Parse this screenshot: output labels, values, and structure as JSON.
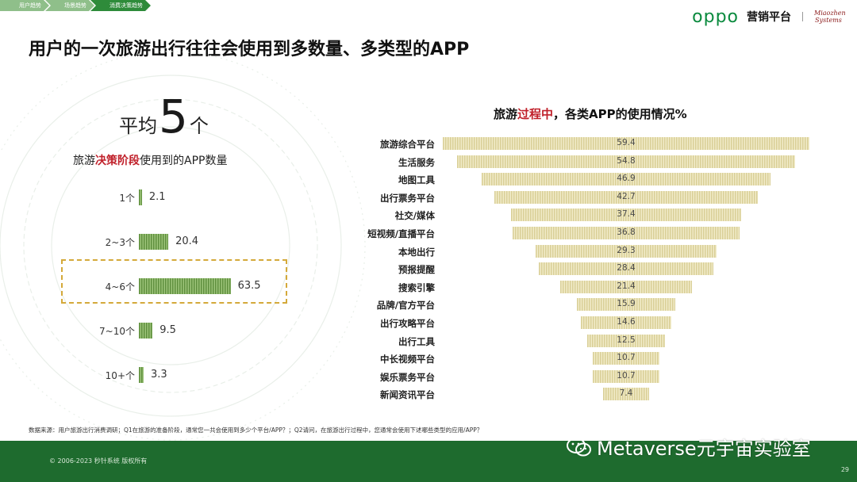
{
  "breadcrumbs": [
    "用户趋势",
    "场景趋势",
    "消费决策趋势"
  ],
  "brand": {
    "logo": "oppo",
    "sub": "营销平台",
    "partner_line1": "Miaozhen",
    "partner_line2": "Systems"
  },
  "title": "用户的一次旅游出行往往会使用到多数量、多类型的APP",
  "left": {
    "avg_prefix": "平均",
    "avg_number": "5",
    "avg_suffix": "个",
    "subtitle_pre": "旅游",
    "subtitle_hl": "决策阶段",
    "subtitle_post": "使用到的APP数量"
  },
  "right": {
    "title_pre": "旅游",
    "title_hl": "过程中",
    "title_post": "，各类APP的使用情况%"
  },
  "chart_data": [
    {
      "type": "bar",
      "orientation": "horizontal",
      "title": "旅游决策阶段使用到的APP数量",
      "categories": [
        "1个",
        "2~3个",
        "4~6个",
        "7~10个",
        "10+个"
      ],
      "values": [
        2.1,
        20.4,
        63.5,
        9.5,
        3.3
      ],
      "highlighted": "4~6个"
    },
    {
      "type": "bar",
      "orientation": "horizontal-centered-funnel",
      "title": "旅游过程中，各类APP的使用情况%",
      "categories": [
        "旅游综合平台",
        "生活服务",
        "地图工具",
        "出行票务平台",
        "社交/媒体",
        "短视频/直播平台",
        "本地出行",
        "预报提醒",
        "搜索引擎",
        "品牌/官方平台",
        "出行攻略平台",
        "出行工具",
        "中长视频平台",
        "娱乐票务平台",
        "新闻资讯平台"
      ],
      "values": [
        59.4,
        54.8,
        46.9,
        42.7,
        37.4,
        36.8,
        29.3,
        28.4,
        21.4,
        15.9,
        14.6,
        12.5,
        10.7,
        10.7,
        7.4
      ]
    }
  ],
  "colors": {
    "left_bar": "#7aa85a",
    "right_bar": "#e6dcae",
    "accent_red": "#c0202a",
    "brand_green": "#0a8a3e",
    "footer": "#1e6b2e"
  },
  "source": "数据来源：用户旅游出行消费调研；Q1在旅游的准备阶段，通常您一共会使用到多少个平台/APP？；Q2请问，在旅游出行过程中，您通常会使用下述哪些类型的应用/APP？",
  "copyright": "© 2006-2023 秒针系统 版权所有",
  "watermark": "Metaverse元宇宙实验室",
  "page_number": "29"
}
